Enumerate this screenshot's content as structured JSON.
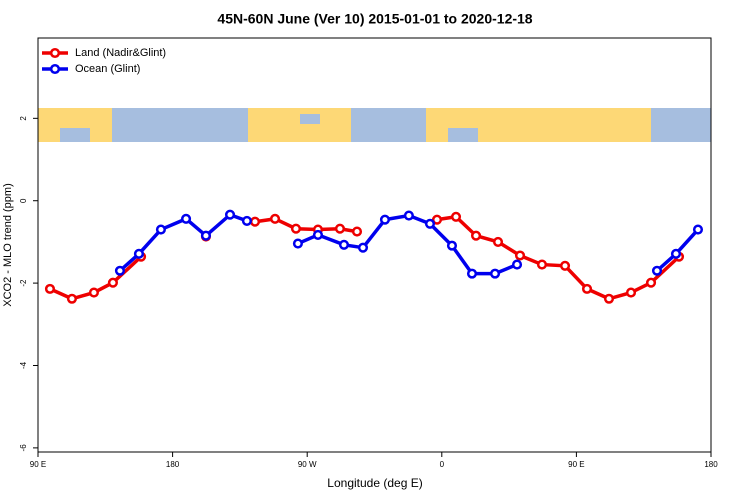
{
  "chart_data": {
    "type": "line",
    "title": "45N-60N June (Ver 10)   2015-01-01 to 2020-12-18",
    "xlabel": "Longitude (deg E)",
    "ylabel": "XCO2 - MLO trend (ppm)",
    "xlim": [
      90,
      540
    ],
    "ylim": [
      -6.1,
      3.95
    ],
    "xticks": [
      {
        "value": 90,
        "label": "90 E"
      },
      180,
      {
        "value": 270,
        "label": "90 W"
      },
      {
        "value": 360,
        "label": "0"
      },
      {
        "value": 450,
        "label": "90 E"
      },
      {
        "value": 540,
        "label": "180"
      }
    ],
    "yticks": [
      2,
      0,
      -2,
      -4,
      -6
    ],
    "legend": "top-left",
    "series": [
      {
        "name": "Land (Nadir&Glint)",
        "color": "#ee0000",
        "x": [
          98,
          112.7,
          127.4,
          140.1,
          158.9,
          null,
          202.3,
          null,
          235.1,
          248.5,
          262.5,
          277.2,
          291.9,
          303.3,
          null,
          356.8,
          369.5,
          382.9,
          397.6,
          412.3,
          427,
          442.4,
          457.1,
          471.8,
          486.5,
          499.9,
          518.6
        ],
        "values": [
          -2.14,
          -2.38,
          -2.23,
          -1.99,
          -1.36,
          null,
          -0.87,
          null,
          -0.51,
          -0.44,
          -0.68,
          -0.7,
          -0.68,
          -0.75,
          null,
          -0.46,
          -0.39,
          -0.85,
          -1.0,
          -1.33,
          -1.55,
          -1.58,
          -2.14,
          -2.38,
          -2.23,
          -1.99,
          -1.36
        ]
      },
      {
        "name": "Ocean (Glint)",
        "color": "#0000ee",
        "x": [
          144.8,
          157.5,
          172.2,
          189,
          202.3,
          218.4,
          229.7,
          null,
          263.8,
          277.2,
          294.6,
          307.3,
          322,
          338,
          352.1,
          366.8,
          380.2,
          395.6,
          410.3,
          null,
          503.9,
          516.6,
          531.3
        ],
        "values": [
          -1.7,
          -1.29,
          -0.7,
          -0.44,
          -0.85,
          -0.34,
          -0.49,
          null,
          -1.04,
          -0.83,
          -1.07,
          -1.14,
          -0.46,
          -0.36,
          -0.56,
          -1.09,
          -1.77,
          -1.77,
          -1.55,
          null,
          -1.7,
          -1.29,
          -0.7
        ]
      }
    ]
  }
}
